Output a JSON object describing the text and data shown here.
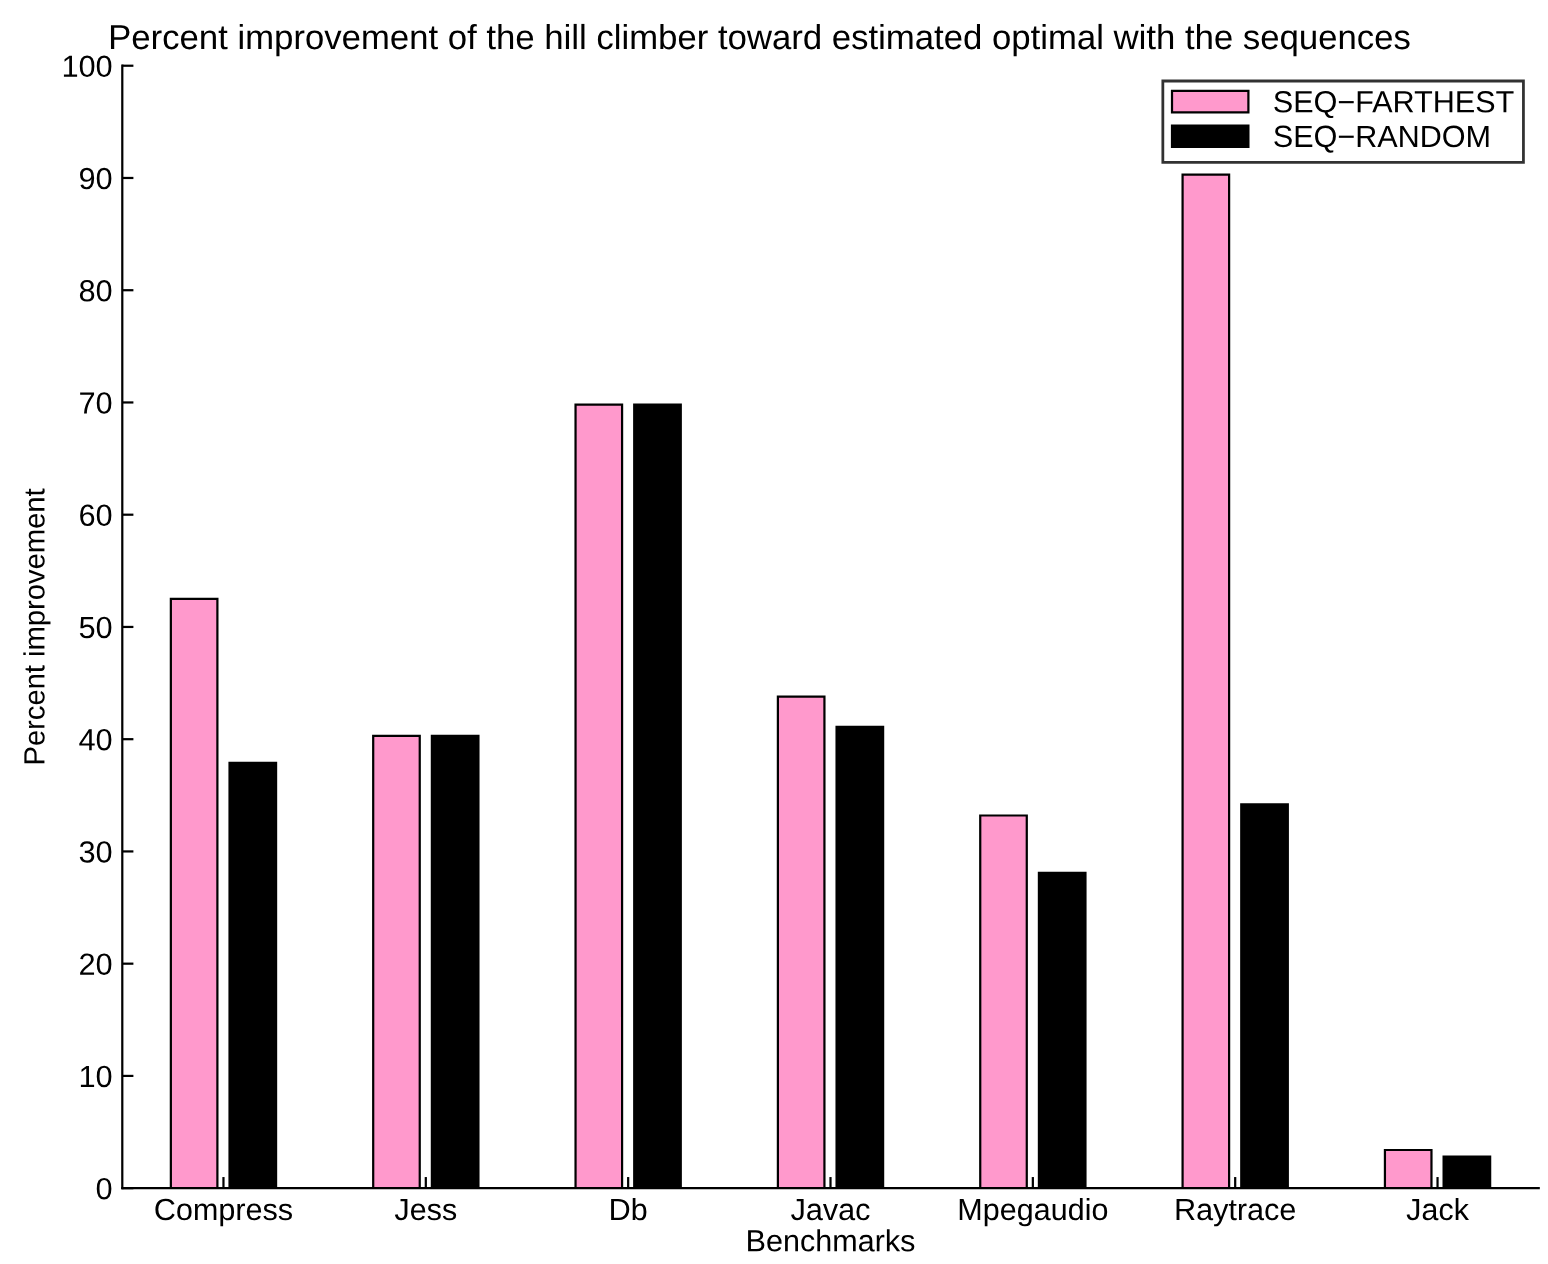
{
  "chart_data": {
    "type": "bar",
    "title": "Percent improvement of the hill climber toward estimated optimal with the sequences",
    "xlabel": "Benchmarks",
    "ylabel": "Percent improvement",
    "categories": [
      "Compress",
      "Jess",
      "Db",
      "Javac",
      "Mpegaudio",
      "Raytrace",
      "Jack"
    ],
    "series": [
      {
        "name": "SEQ−FARTHEST",
        "color": "#ff99cc",
        "values": [
          52.5,
          40.3,
          69.8,
          43.8,
          33.2,
          90.3,
          3.4
        ]
      },
      {
        "name": "SEQ−RANDOM",
        "color": "#000000",
        "values": [
          37.9,
          40.3,
          69.8,
          41.1,
          28.1,
          34.2,
          2.8
        ]
      }
    ],
    "ylim": [
      0,
      100
    ],
    "yticks": [
      0,
      10,
      20,
      30,
      40,
      50,
      60,
      70,
      80,
      90,
      100
    ],
    "grid": false,
    "legend": "top right"
  }
}
